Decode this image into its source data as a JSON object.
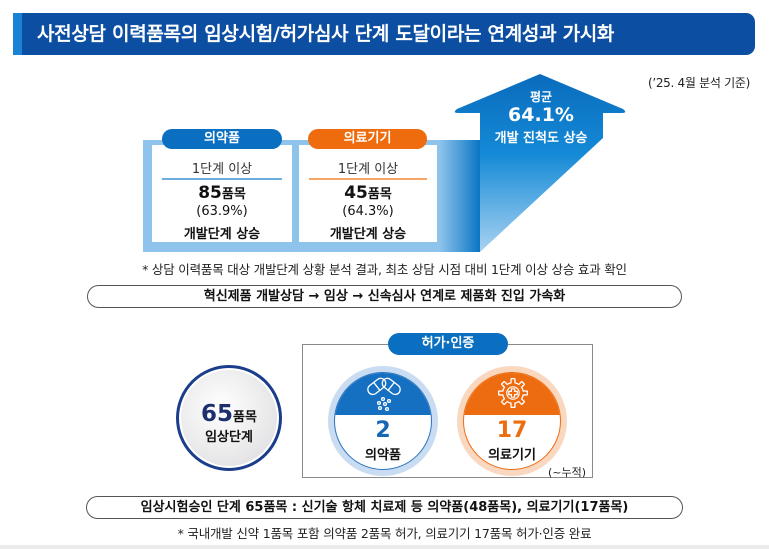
{
  "title": "사전상담 이력품목의 임상시험/허가심사 단계 도달이라는 연계성과 가시화",
  "basis_note": "(’25. 4월 분석 기준)",
  "development": {
    "categories": [
      {
        "label": "의약품",
        "stage": "1단계 이상",
        "count": "85",
        "unit": "품목",
        "percent": "(63.9%)",
        "result": "개발단계 상승"
      },
      {
        "label": "의료기기",
        "stage": "1단계 이상",
        "count": "45",
        "unit": "품목",
        "percent": "(64.3%)",
        "result": "개발단계 상승"
      }
    ],
    "average": {
      "label": "평균",
      "value": "64.1%",
      "caption": "개발 진척도 상승"
    },
    "footnote": "* 상담 이력품목 대상 개발단계 상황 분석 결과, 최초 상담 시점 대비 1단계 이상 상승 효과 확인",
    "banner": "혁신제품 개발상담 → 임상 → 신속심사 연계로 제품화 진입 가속화"
  },
  "clinical": {
    "count": "65",
    "unit": "품목",
    "label": "임상단계"
  },
  "approval": {
    "title": "허가·인증",
    "items": [
      {
        "count": "2",
        "label": "의약품",
        "icon": "capsule-icon"
      },
      {
        "count": "17",
        "label": "의료기기",
        "icon": "medical-gear-icon"
      }
    ],
    "note": "(~누적)"
  },
  "summary": {
    "banner": "임상시험승인 단계 65품목 : 신기술 항체 치료제 등 의약품(48품목), 의료기기(17품목)",
    "footnote": "* 국내개발 신약 1품목 포함 의약품 2품목 허가, 의료기기 17품목 허가·인증 완료"
  },
  "colors": {
    "title_bg": "#0b4ea2",
    "pharma_blue": "#0a6fc0",
    "device_orange": "#ee6c0e",
    "frame_light_blue": "#8ec3ec",
    "navy": "#1b3e8c"
  }
}
